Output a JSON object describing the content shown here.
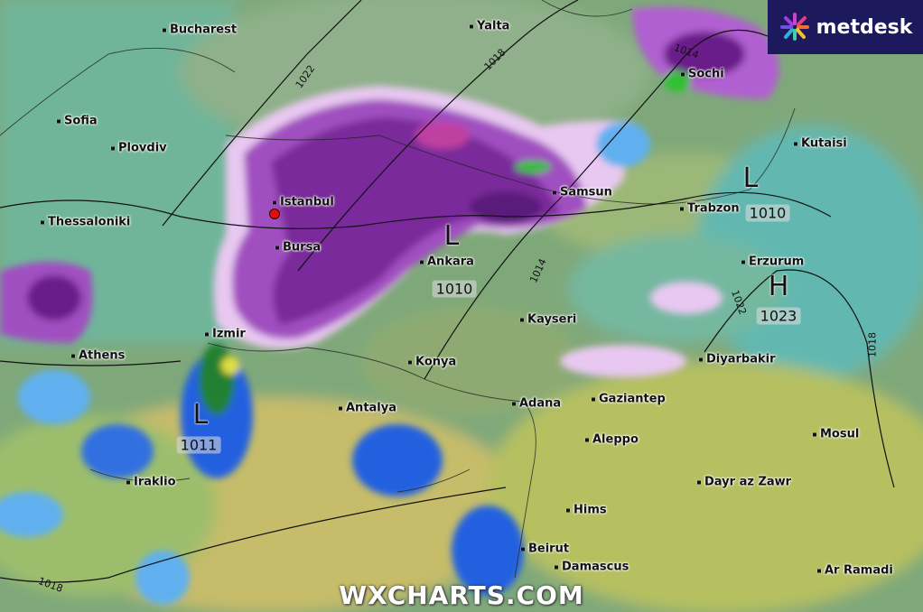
{
  "brand": {
    "logo_text": "metdesk",
    "watermark": "WXCHARTS.COM"
  },
  "colors": {
    "land_low": "#7fa87a",
    "sea": "#4fb8a8",
    "desert": "#c8c070",
    "heavy_precip": "#5a1a7a",
    "moderate_precip": "#a050c0",
    "light_precip": "#e8c8f0",
    "rain_blue": "#2060e0",
    "rain_light": "#60b0f0",
    "red_marker": "#e01010",
    "logo_bg": "#1c1a5c"
  },
  "cities": [
    "Bucharest",
    "Yalta",
    "Sochi",
    "Sofia",
    "Plovdiv",
    "Kutaisi",
    "Istanbul",
    "Samsun",
    "Trabzon",
    "Thessaloniki",
    "Bursa",
    "Ankara",
    "Erzurum",
    "Kayseri",
    "Izmir",
    "Athens",
    "Konya",
    "Diyarbakir",
    "Adana",
    "Gaziantep",
    "Antalya",
    "Aleppo",
    "Mosul",
    "Iraklio",
    "Dayr az Zawr",
    "Hims",
    "Beirut",
    "Damascus",
    "Ar Ramadi"
  ],
  "pressure_systems": [
    {
      "type": "L",
      "value": "1011"
    },
    {
      "type": "L",
      "value": "1010"
    },
    {
      "type": "L",
      "value": "1010"
    },
    {
      "type": "H",
      "value": "1023"
    }
  ],
  "isobar_labels": [
    "1022",
    "1018",
    "1014",
    "1014",
    "1022",
    "1018",
    "1018"
  ]
}
